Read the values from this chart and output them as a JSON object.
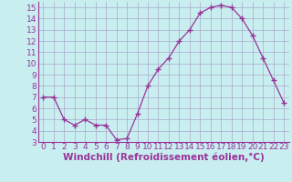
{
  "x": [
    0,
    1,
    2,
    3,
    4,
    5,
    6,
    7,
    8,
    9,
    10,
    11,
    12,
    13,
    14,
    15,
    16,
    17,
    18,
    19,
    20,
    21,
    22,
    23
  ],
  "y": [
    7,
    7,
    5,
    4.5,
    5,
    4.5,
    4.5,
    3.2,
    3.3,
    5.5,
    8,
    9.5,
    10.5,
    12,
    13,
    14.5,
    15,
    15.2,
    15,
    14,
    12.5,
    10.5,
    8.5,
    6.5
  ],
  "line_color": "#993399",
  "marker": "+",
  "marker_size": 4,
  "bg_color": "#c8eef0",
  "grid_color": "#aaaacc",
  "xlabel": "Windchill (Refroidissement éolien,°C)",
  "xlabel_color": "#993399",
  "tick_color": "#993399",
  "spine_color": "#993399",
  "ylim": [
    3,
    15.5
  ],
  "xlim": [
    -0.5,
    23.5
  ],
  "yticks": [
    3,
    4,
    5,
    6,
    7,
    8,
    9,
    10,
    11,
    12,
    13,
    14,
    15
  ],
  "xticks": [
    0,
    1,
    2,
    3,
    4,
    5,
    6,
    7,
    8,
    9,
    10,
    11,
    12,
    13,
    14,
    15,
    16,
    17,
    18,
    19,
    20,
    21,
    22,
    23
  ],
  "tick_fontsize": 6.5,
  "label_fontsize": 7.5
}
